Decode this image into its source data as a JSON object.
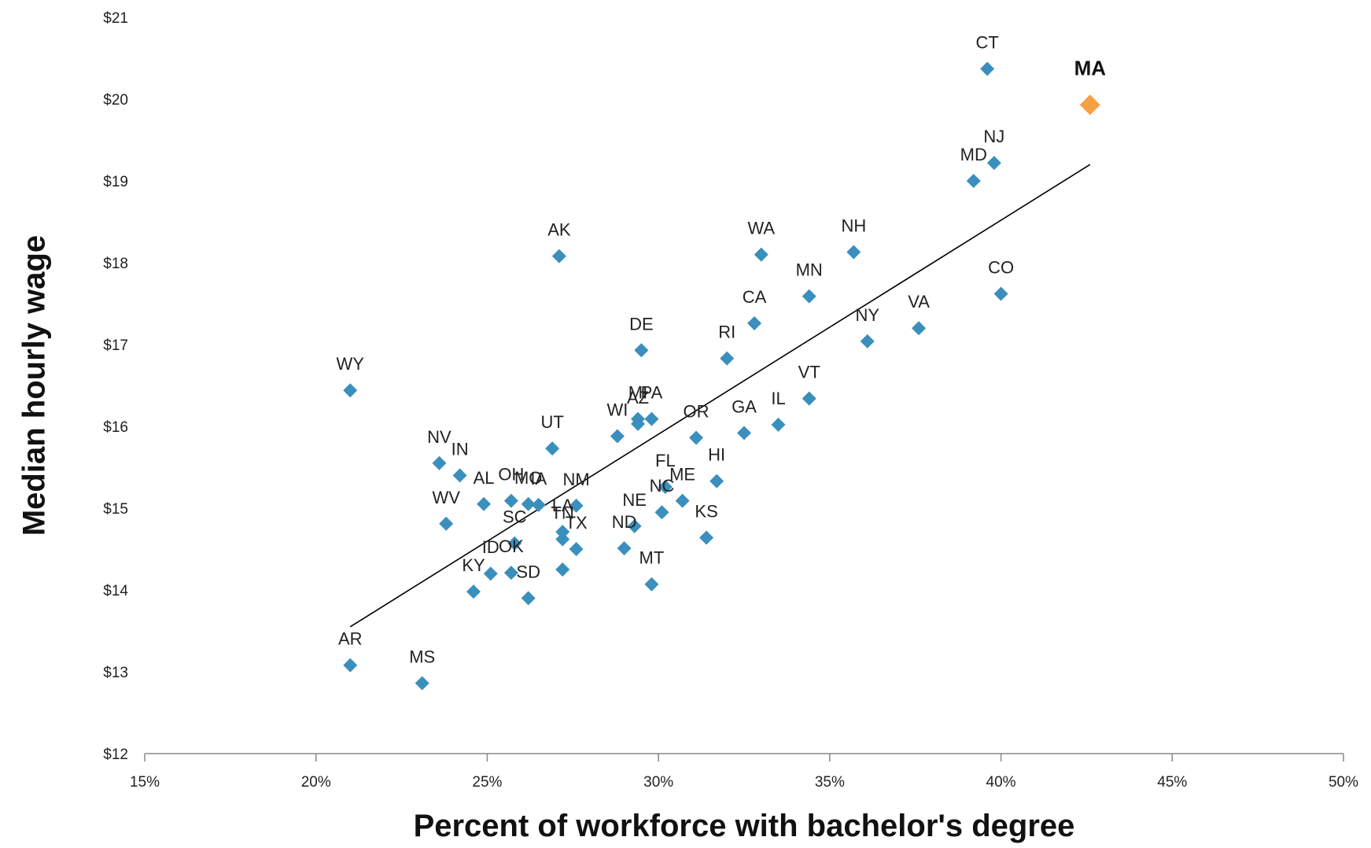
{
  "chart_data": {
    "type": "scatter",
    "xlabel": "Percent of workforce with bachelor's degree",
    "ylabel": "Median hourly wage",
    "xlim": [
      15,
      50
    ],
    "ylim": [
      12,
      21
    ],
    "x_ticks": [
      15,
      20,
      25,
      30,
      35,
      40,
      45,
      50
    ],
    "x_tick_labels": [
      "15%",
      "20%",
      "25%",
      "30%",
      "35%",
      "40%",
      "45%",
      "50%"
    ],
    "y_ticks": [
      12,
      13,
      14,
      15,
      16,
      17,
      18,
      19,
      20,
      21
    ],
    "y_tick_labels": [
      "$12",
      "$13",
      "$14",
      "$15",
      "$16",
      "$17",
      "$18",
      "$19",
      "$20",
      "$21"
    ],
    "grid": false,
    "colors": {
      "points": "#3a8fbd",
      "highlight": "#f7a043",
      "trendline": "#000000"
    },
    "trendline": {
      "x": [
        21.0,
        42.6
      ],
      "y": [
        13.55,
        19.2
      ]
    },
    "highlight_label": "MA",
    "points": [
      {
        "label": "CT",
        "x": 39.6,
        "y": 20.37
      },
      {
        "label": "MA",
        "x": 42.6,
        "y": 19.93
      },
      {
        "label": "NJ",
        "x": 39.8,
        "y": 19.22
      },
      {
        "label": "MD",
        "x": 39.2,
        "y": 19.0
      },
      {
        "label": "WA",
        "x": 33.0,
        "y": 18.1
      },
      {
        "label": "NH",
        "x": 35.7,
        "y": 18.13
      },
      {
        "label": "AK",
        "x": 27.1,
        "y": 18.08
      },
      {
        "label": "CO",
        "x": 40.0,
        "y": 17.62
      },
      {
        "label": "MN",
        "x": 34.4,
        "y": 17.59
      },
      {
        "label": "CA",
        "x": 32.8,
        "y": 17.26
      },
      {
        "label": "VA",
        "x": 37.6,
        "y": 17.2
      },
      {
        "label": "NY",
        "x": 36.1,
        "y": 17.04
      },
      {
        "label": "DE",
        "x": 29.5,
        "y": 16.93
      },
      {
        "label": "RI",
        "x": 32.0,
        "y": 16.83
      },
      {
        "label": "WY",
        "x": 21.0,
        "y": 16.44
      },
      {
        "label": "VT",
        "x": 34.4,
        "y": 16.34
      },
      {
        "label": "MI",
        "x": 29.4,
        "y": 16.09
      },
      {
        "label": "PA",
        "x": 29.8,
        "y": 16.09
      },
      {
        "label": "AZ",
        "x": 29.4,
        "y": 16.03
      },
      {
        "label": "IL",
        "x": 33.5,
        "y": 16.02
      },
      {
        "label": "GA",
        "x": 32.5,
        "y": 15.92
      },
      {
        "label": "WI",
        "x": 28.8,
        "y": 15.88
      },
      {
        "label": "OR",
        "x": 31.1,
        "y": 15.86
      },
      {
        "label": "UT",
        "x": 26.9,
        "y": 15.73
      },
      {
        "label": "NV",
        "x": 23.6,
        "y": 15.55
      },
      {
        "label": "IN",
        "x": 24.2,
        "y": 15.4
      },
      {
        "label": "HI",
        "x": 31.7,
        "y": 15.33
      },
      {
        "label": "FL",
        "x": 30.2,
        "y": 15.26
      },
      {
        "label": "ME",
        "x": 30.7,
        "y": 15.09
      },
      {
        "label": "OH",
        "x": 25.7,
        "y": 15.09
      },
      {
        "label": "MO",
        "x": 26.2,
        "y": 15.05
      },
      {
        "label": "IA",
        "x": 26.5,
        "y": 15.04
      },
      {
        "label": "AL",
        "x": 24.9,
        "y": 15.05
      },
      {
        "label": "NM",
        "x": 27.6,
        "y": 15.03
      },
      {
        "label": "NC",
        "x": 30.1,
        "y": 14.95
      },
      {
        "label": "WV",
        "x": 23.8,
        "y": 14.81
      },
      {
        "label": "NE",
        "x": 29.3,
        "y": 14.78
      },
      {
        "label": "LA",
        "x": 27.2,
        "y": 14.71
      },
      {
        "label": "KS",
        "x": 31.4,
        "y": 14.64
      },
      {
        "label": "SC",
        "x": 25.8,
        "y": 14.57
      },
      {
        "label": "TX",
        "x": 27.6,
        "y": 14.5
      },
      {
        "label": "TN",
        "x": 27.2,
        "y": 14.62
      },
      {
        "label": "ND",
        "x": 29.0,
        "y": 14.51
      },
      {
        "label": "ID",
        "x": 25.1,
        "y": 14.2
      },
      {
        "label": "OK",
        "x": 25.7,
        "y": 14.21
      },
      {
        "label": "SD",
        "x": 26.2,
        "y": 13.9
      },
      {
        "label": "KY",
        "x": 24.6,
        "y": 13.98
      },
      {
        "label": "MT",
        "x": 29.8,
        "y": 14.07
      },
      {
        "label": "AR",
        "x": 21.0,
        "y": 13.08
      },
      {
        "label": "MS",
        "x": 23.1,
        "y": 12.86
      },
      {
        "label": "",
        "x": 27.2,
        "y": 14.25
      }
    ]
  }
}
